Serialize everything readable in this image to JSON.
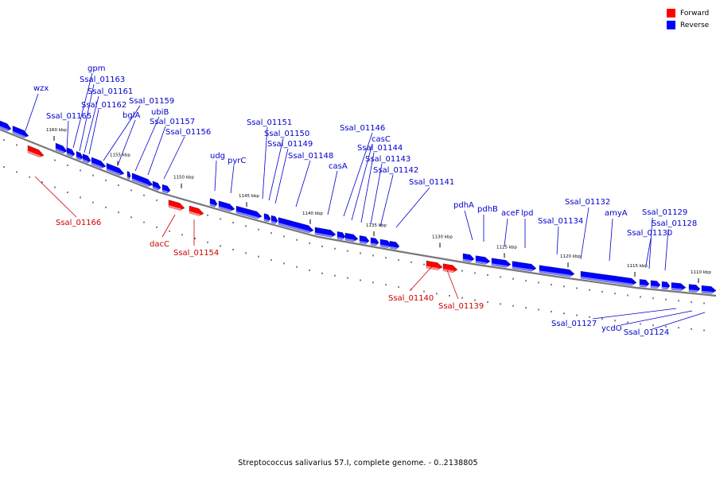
{
  "colors": {
    "forward": "#ff0000",
    "reverse": "#0000ff",
    "forward_label": "#cc0000",
    "reverse_label": "#0000cc",
    "backbone": "#777777"
  },
  "legend": {
    "forward": "Forward",
    "reverse": "Reverse"
  },
  "caption": "Streptococcus salivarius 57.I, complete genome. - 0..2138805",
  "scale_labels": [
    "1160 kbp",
    "1155 kbp",
    "1150 kbp",
    "1145 kbp",
    "1140 kbp",
    "1135 kbp",
    "1130 kbp",
    "1125 kbp",
    "1120 kbp",
    "1115 kbp",
    "1110 kbp"
  ],
  "forward_genes": [
    "Ssal_01166",
    "dacC",
    "Ssal_01154",
    "Ssal_01140",
    "Ssal_01139"
  ],
  "reverse_genes": [
    "wzx",
    "gpm",
    "Ssal_01163",
    "Ssal_01161",
    "Ssal_01162",
    "Ssal_01165",
    "Ssal_01159",
    "bglA",
    "ubiB",
    "Ssal_01157",
    "Ssal_01156",
    "udg",
    "pyrC",
    "Ssal_01151",
    "Ssal_01150",
    "Ssal_01149",
    "Ssal_01148",
    "casA",
    "Ssal_01146",
    "casC",
    "Ssal_01144",
    "Ssal_01143",
    "Ssal_01142",
    "Ssal_01141",
    "pdhA",
    "pdhB",
    "aceF",
    "lpd",
    "Ssal_01134",
    "Ssal_01132",
    "amyA",
    "Ssal_01129",
    "Ssal_01128",
    "Ssal_01130",
    "Ssal_01127",
    "ycdO",
    "Ssal_01124"
  ]
}
